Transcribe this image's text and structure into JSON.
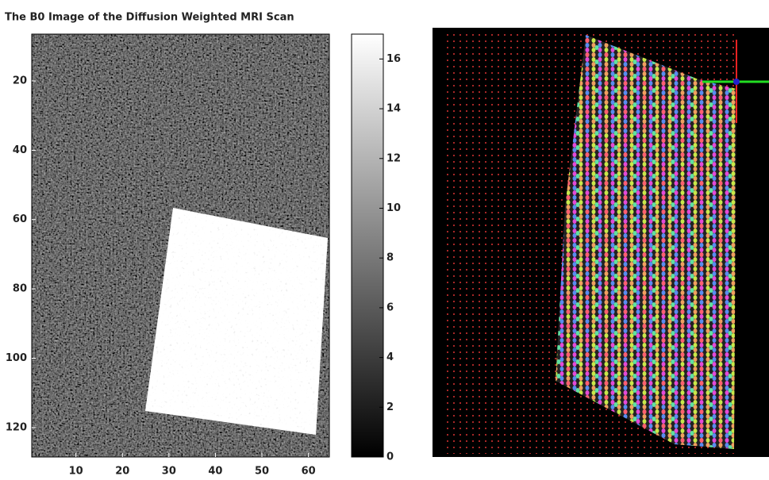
{
  "chart_data": {
    "type": "image",
    "title": "The B0 Image of the Diffusion Weighted MRI Scan",
    "xlim": [
      0.5,
      64.5
    ],
    "xticks": [
      10,
      20,
      30,
      40,
      50,
      60
    ],
    "ylim": [
      6.5,
      128.5
    ],
    "yticks": [
      20,
      40,
      60,
      80,
      100,
      120
    ],
    "y_reversed": true,
    "colormap": "gray",
    "clim": [
      0,
      17
    ],
    "cticks": [
      0,
      2,
      4,
      6,
      8,
      10,
      12,
      14,
      16
    ]
  }
}
